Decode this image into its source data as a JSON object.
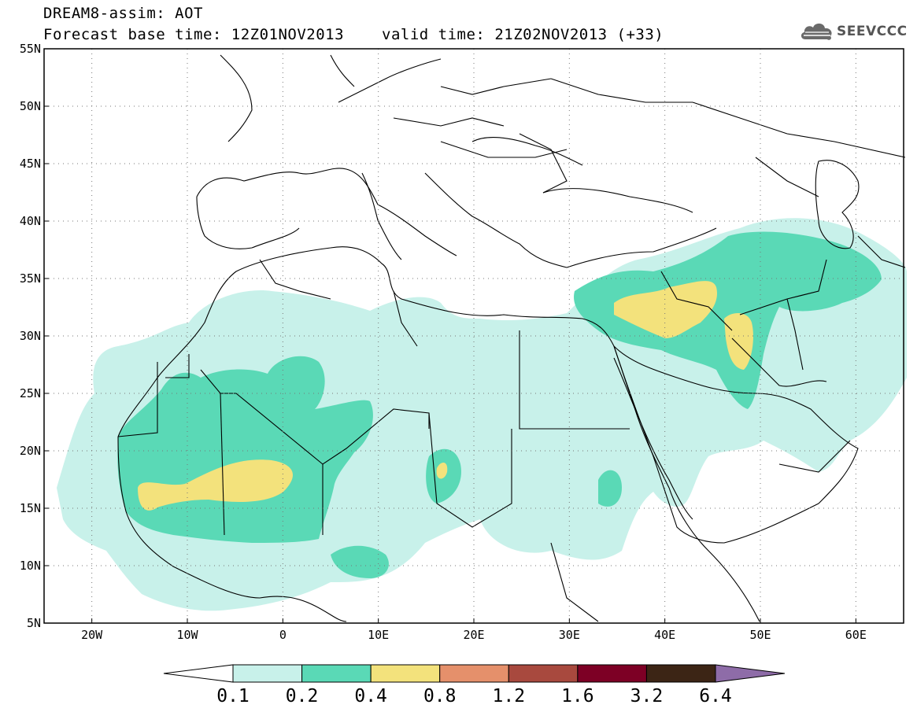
{
  "header": {
    "title": "DREAM8-assim: AOT",
    "forecast_base": "Forecast base time: 12Z01NOV2013",
    "valid_time": "valid time: 21Z02NOV2013 (+33)"
  },
  "logo": {
    "text": "SEEVCCC",
    "icon": "cloud-icon"
  },
  "map": {
    "lon_range": [
      -25,
      65
    ],
    "lat_range": [
      5,
      55
    ],
    "lon_ticks": [
      {
        "lon": -20,
        "label": "20W"
      },
      {
        "lon": -10,
        "label": "10W"
      },
      {
        "lon": 0,
        "label": "0"
      },
      {
        "lon": 10,
        "label": "10E"
      },
      {
        "lon": 20,
        "label": "20E"
      },
      {
        "lon": 30,
        "label": "30E"
      },
      {
        "lon": 40,
        "label": "40E"
      },
      {
        "lon": 50,
        "label": "50E"
      },
      {
        "lon": 60,
        "label": "60E"
      }
    ],
    "lat_ticks": [
      {
        "lat": 5,
        "label": "5N"
      },
      {
        "lat": 10,
        "label": "10N"
      },
      {
        "lat": 15,
        "label": "15N"
      },
      {
        "lat": 20,
        "label": "20N"
      },
      {
        "lat": 25,
        "label": "25N"
      },
      {
        "lat": 30,
        "label": "30N"
      },
      {
        "lat": 35,
        "label": "35N"
      },
      {
        "lat": 40,
        "label": "40N"
      },
      {
        "lat": 45,
        "label": "45N"
      },
      {
        "lat": 50,
        "label": "50N"
      },
      {
        "lat": 55,
        "label": "55N"
      }
    ],
    "grid": true
  },
  "colorbar": {
    "labels": [
      "0.1",
      "0.2",
      "0.4",
      "0.8",
      "1.2",
      "1.6",
      "3.2",
      "6.4"
    ],
    "colors": [
      "#ffffff",
      "#c8f1ea",
      "#5ad9b6",
      "#f3e27c",
      "#e5906b",
      "#a8493e",
      "#7d0025",
      "#3c2515",
      "#8e6ca8"
    ]
  },
  "aot_field": {
    "levels": [
      "0.1-0.2",
      "0.2-0.4",
      "0.4-0.8"
    ],
    "colors": {
      "0.1-0.2": "#c8f1ea",
      "0.2-0.4": "#5ad9b6",
      "0.4-0.8": "#f3e27c"
    }
  }
}
